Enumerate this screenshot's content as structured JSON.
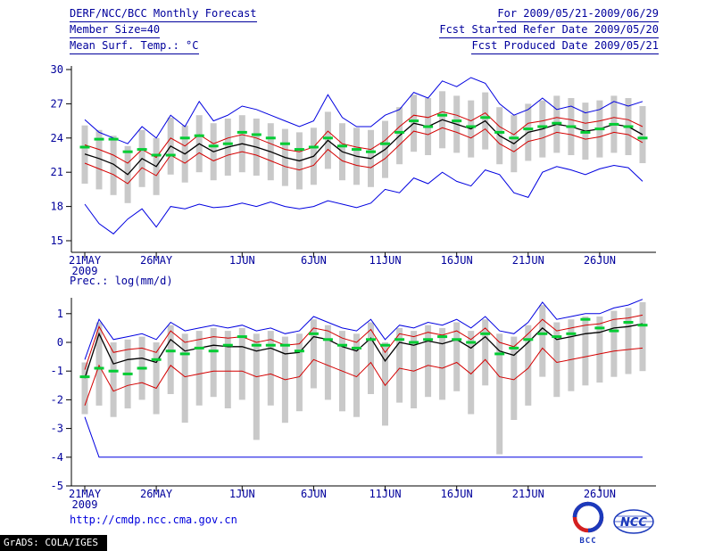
{
  "header": {
    "title": "DERF/NCC/BCC Monthly Forecast",
    "member_size": "Member Size=40",
    "for_range": "For 2009/05/21-2009/06/29",
    "fcst_started": "Fcst Started Refer Date 2009/05/20",
    "fcst_produced": "Fcst Produced Date 2009/05/21"
  },
  "footer": {
    "url": "http://cmdp.ncc.cma.gov.cn",
    "grads_credit": "GrADS: COLA/IGES",
    "bcc_label": "BCC",
    "ncc_label": "NCC"
  },
  "colors": {
    "header_text": "#00009c",
    "tick_text": "#00009c",
    "axis": "#000000",
    "envelope_blue": "#0000e0",
    "quartile_red": "#d40000",
    "mean_black": "#000000",
    "obs_green": "#00cc33",
    "ensemble_bar": "#c9c9c9",
    "url_blue": "#0000dd",
    "logo_blue": "#1c39bb",
    "logo_red": "#d42020"
  },
  "chart_data": [
    {
      "id": "temp",
      "type": "line",
      "title": "Mean Surf. Temp.: °C",
      "n_days": 40,
      "start_date": "21MAY2009",
      "x_ticks": [
        {
          "day": 0,
          "label": "21MAY"
        },
        {
          "day": 5,
          "label": "26MAY"
        },
        {
          "day": 11,
          "label": "1JUN"
        },
        {
          "day": 16,
          "label": "6JUN"
        },
        {
          "day": 21,
          "label": "11JUN"
        },
        {
          "day": 26,
          "label": "16JUN"
        },
        {
          "day": 31,
          "label": "21JUN"
        },
        {
          "day": 36,
          "label": "26JUN"
        }
      ],
      "x_year_label": "2009",
      "ylim": [
        15,
        30
      ],
      "yticks": [
        15,
        18,
        21,
        24,
        27,
        30
      ],
      "grid": false,
      "legend": "none",
      "series": [
        {
          "name": "ensemble-max",
          "color": "#0000e0",
          "width": 1,
          "values": [
            25.6,
            24.5,
            24.0,
            23.5,
            25.0,
            24.0,
            26.0,
            25.0,
            27.2,
            25.5,
            26.0,
            26.8,
            26.5,
            26.0,
            25.5,
            25.0,
            25.5,
            27.8,
            25.8,
            25.0,
            25.0,
            26.0,
            26.5,
            28.0,
            27.5,
            29.0,
            28.5,
            29.3,
            28.8,
            27.0,
            26.0,
            26.5,
            27.5,
            26.5,
            26.8,
            26.2,
            26.5,
            27.2,
            26.8,
            27.2
          ]
        },
        {
          "name": "ensemble-min",
          "color": "#0000e0",
          "width": 1,
          "values": [
            18.2,
            16.5,
            15.6,
            16.9,
            17.8,
            16.2,
            18.0,
            17.8,
            18.2,
            17.9,
            18.0,
            18.3,
            18.0,
            18.4,
            18.0,
            17.8,
            18.0,
            18.5,
            18.2,
            17.9,
            18.3,
            19.5,
            19.2,
            20.5,
            20.0,
            21.0,
            20.2,
            19.8,
            21.2,
            20.8,
            19.2,
            18.8,
            21.0,
            21.5,
            21.2,
            20.8,
            21.3,
            21.6,
            21.4,
            20.2
          ]
        },
        {
          "name": "upper-quartile",
          "color": "#d40000",
          "width": 1,
          "values": [
            23.4,
            23.0,
            22.5,
            21.8,
            23.0,
            22.3,
            24.0,
            23.3,
            24.3,
            23.5,
            24.0,
            24.3,
            24.0,
            23.5,
            23.0,
            22.8,
            23.2,
            24.6,
            23.5,
            23.2,
            23.0,
            23.8,
            25.0,
            26.0,
            25.8,
            26.3,
            26.0,
            25.5,
            26.2,
            25.0,
            24.3,
            25.3,
            25.5,
            25.8,
            25.6,
            25.3,
            25.5,
            25.8,
            25.6,
            25.0
          ]
        },
        {
          "name": "lower-quartile",
          "color": "#d40000",
          "width": 1,
          "values": [
            21.8,
            21.3,
            20.8,
            20.0,
            21.4,
            20.7,
            22.5,
            21.8,
            22.7,
            22.0,
            22.5,
            22.8,
            22.5,
            22.0,
            21.5,
            21.2,
            21.6,
            23.0,
            22.0,
            21.6,
            21.4,
            22.2,
            23.4,
            24.6,
            24.3,
            24.9,
            24.5,
            24.0,
            24.8,
            23.5,
            22.8,
            23.7,
            24.0,
            24.5,
            24.3,
            23.9,
            24.1,
            24.5,
            24.3,
            23.6
          ]
        },
        {
          "name": "ensemble-mean",
          "color": "#000000",
          "width": 1.3,
          "values": [
            22.6,
            22.2,
            21.7,
            20.8,
            22.2,
            21.5,
            23.3,
            22.6,
            23.5,
            22.8,
            23.2,
            23.5,
            23.2,
            22.8,
            22.3,
            22.0,
            22.4,
            23.8,
            22.8,
            22.4,
            22.2,
            23.0,
            24.2,
            25.3,
            25.0,
            25.6,
            25.2,
            24.8,
            25.5,
            24.2,
            23.5,
            24.5,
            24.8,
            25.2,
            25.0,
            24.6,
            24.8,
            25.2,
            25.0,
            24.3
          ]
        },
        {
          "name": "climate-obs",
          "color": "#00cc33",
          "style": "dash-markers",
          "values": [
            23.2,
            23.9,
            23.9,
            22.8,
            23.0,
            22.5,
            22.5,
            24.0,
            24.2,
            23.3,
            23.5,
            24.5,
            24.3,
            24.0,
            23.5,
            23.0,
            23.2,
            24.0,
            23.3,
            23.0,
            22.8,
            23.5,
            24.5,
            25.5,
            25.0,
            26.0,
            25.5,
            25.0,
            25.8,
            24.5,
            24.0,
            24.8,
            25.0,
            25.3,
            25.0,
            24.5,
            24.8,
            25.2,
            25.0,
            24.0
          ]
        }
      ],
      "bars": {
        "lo": [
          20.0,
          19.5,
          19.0,
          18.3,
          19.7,
          19.0,
          20.8,
          20.1,
          21.0,
          20.3,
          20.7,
          21.0,
          20.7,
          20.3,
          19.8,
          19.5,
          19.9,
          21.3,
          20.3,
          19.9,
          19.7,
          20.5,
          21.7,
          22.8,
          22.5,
          23.1,
          22.7,
          22.3,
          23.0,
          21.7,
          21.0,
          22.0,
          22.3,
          22.7,
          22.5,
          22.1,
          22.3,
          22.7,
          22.5,
          21.8
        ],
        "hi": [
          25.1,
          24.7,
          24.2,
          23.3,
          24.7,
          24.0,
          25.8,
          25.1,
          26.0,
          25.3,
          25.7,
          26.0,
          25.7,
          25.3,
          24.8,
          24.5,
          24.9,
          26.3,
          25.3,
          24.9,
          24.7,
          25.5,
          26.7,
          27.8,
          27.5,
          28.1,
          27.7,
          27.3,
          28.0,
          26.7,
          26.0,
          27.0,
          27.3,
          27.7,
          27.5,
          27.1,
          27.3,
          27.7,
          27.5,
          26.8
        ]
      }
    },
    {
      "id": "prec",
      "type": "line",
      "title": "Prec.: log(mm/d)",
      "n_days": 40,
      "start_date": "21MAY2009",
      "x_ticks": [
        {
          "day": 0,
          "label": "21MAY"
        },
        {
          "day": 5,
          "label": "26MAY"
        },
        {
          "day": 11,
          "label": "1JUN"
        },
        {
          "day": 16,
          "label": "6JUN"
        },
        {
          "day": 21,
          "label": "11JUN"
        },
        {
          "day": 26,
          "label": "16JUN"
        },
        {
          "day": 31,
          "label": "21JUN"
        },
        {
          "day": 36,
          "label": "26JUN"
        }
      ],
      "x_year_label": "2009",
      "ylim": [
        -5,
        1.5
      ],
      "yticks": [
        -5,
        -4,
        -3,
        -2,
        -1,
        0,
        1
      ],
      "grid": false,
      "legend": "none",
      "series": [
        {
          "name": "ensemble-max",
          "color": "#0000e0",
          "width": 1,
          "values": [
            -0.6,
            0.8,
            0.1,
            0.2,
            0.3,
            0.1,
            0.7,
            0.4,
            0.5,
            0.6,
            0.5,
            0.6,
            0.4,
            0.5,
            0.3,
            0.4,
            0.9,
            0.7,
            0.5,
            0.4,
            0.8,
            0.1,
            0.6,
            0.5,
            0.7,
            0.6,
            0.8,
            0.5,
            0.9,
            0.4,
            0.3,
            0.7,
            1.4,
            0.8,
            0.9,
            1.0,
            1.0,
            1.2,
            1.3,
            1.5
          ]
        },
        {
          "name": "ensemble-min",
          "color": "#0000e0",
          "width": 1,
          "values": [
            -2.6,
            -4,
            -4,
            -4,
            -4,
            -4,
            -4,
            -4,
            -4,
            -4,
            -4,
            -4,
            -4,
            -4,
            -4,
            -4,
            -4,
            -4,
            -4,
            -4,
            -4,
            -4,
            -4,
            -4,
            -4,
            -4,
            -4,
            -4,
            -4,
            -4,
            -4,
            -4,
            -4,
            -4,
            -4,
            -4,
            -4,
            -4,
            -4,
            -4
          ]
        },
        {
          "name": "upper-quartile",
          "color": "#d40000",
          "width": 1,
          "values": [
            -0.95,
            0.55,
            -0.35,
            -0.25,
            -0.2,
            -0.35,
            0.4,
            0.0,
            0.1,
            0.2,
            0.15,
            0.2,
            0.0,
            0.1,
            -0.1,
            -0.05,
            0.5,
            0.4,
            0.15,
            0.0,
            0.45,
            -0.35,
            0.3,
            0.2,
            0.35,
            0.25,
            0.4,
            0.1,
            0.5,
            0.0,
            -0.15,
            0.3,
            0.8,
            0.4,
            0.5,
            0.6,
            0.65,
            0.8,
            0.85,
            0.95
          ]
        },
        {
          "name": "lower-quartile",
          "color": "#d40000",
          "width": 1,
          "values": [
            -2.2,
            -0.8,
            -1.7,
            -1.5,
            -1.4,
            -1.6,
            -0.8,
            -1.2,
            -1.1,
            -1.0,
            -1.0,
            -1.0,
            -1.2,
            -1.1,
            -1.3,
            -1.2,
            -0.6,
            -0.8,
            -1.0,
            -1.2,
            -0.7,
            -1.5,
            -0.9,
            -1.0,
            -0.8,
            -0.9,
            -0.7,
            -1.1,
            -0.6,
            -1.2,
            -1.3,
            -0.9,
            -0.2,
            -0.7,
            -0.6,
            -0.5,
            -0.4,
            -0.3,
            -0.25,
            -0.2
          ]
        },
        {
          "name": "ensemble-mean",
          "color": "#000000",
          "width": 1.3,
          "values": [
            -1.25,
            0.3,
            -0.75,
            -0.6,
            -0.55,
            -0.7,
            0.1,
            -0.3,
            -0.2,
            -0.1,
            -0.15,
            -0.15,
            -0.3,
            -0.2,
            -0.4,
            -0.35,
            0.2,
            0.1,
            -0.15,
            -0.3,
            0.15,
            -0.65,
            0.0,
            -0.1,
            0.05,
            -0.05,
            0.1,
            -0.2,
            0.2,
            -0.3,
            -0.45,
            0.0,
            0.5,
            0.1,
            0.2,
            0.3,
            0.35,
            0.5,
            0.55,
            0.65
          ]
        },
        {
          "name": "climate-obs",
          "color": "#00cc33",
          "style": "dash-markers",
          "values": [
            -1.2,
            -0.9,
            -1.0,
            -1.1,
            -0.9,
            -0.6,
            -0.3,
            -0.4,
            -0.2,
            -0.3,
            -0.1,
            0.2,
            -0.1,
            -0.1,
            -0.1,
            -0.3,
            0.3,
            0.1,
            -0.1,
            -0.2,
            0.1,
            -0.1,
            0.1,
            0.0,
            0.1,
            0.2,
            0.1,
            0.0,
            0.3,
            -0.4,
            -0.2,
            0.1,
            0.3,
            0.2,
            0.3,
            0.8,
            0.5,
            0.4,
            0.7,
            0.6
          ]
        }
      ],
      "bars": {
        "lo": [
          -2.5,
          -2.2,
          -2.6,
          -2.3,
          -2.0,
          -2.5,
          -1.8,
          -2.8,
          -2.2,
          -1.9,
          -2.3,
          -2.0,
          -3.4,
          -2.2,
          -2.8,
          -2.4,
          -1.6,
          -2.0,
          -2.4,
          -2.6,
          -1.8,
          -2.9,
          -2.1,
          -2.3,
          -1.9,
          -2.0,
          -1.7,
          -2.5,
          -1.5,
          -3.9,
          -2.7,
          -2.2,
          -1.2,
          -1.9,
          -1.7,
          -1.5,
          -1.4,
          -1.2,
          -1.1,
          -1.0
        ],
        "hi": [
          -0.7,
          0.7,
          0.0,
          0.1,
          0.2,
          0.0,
          0.6,
          0.3,
          0.4,
          0.5,
          0.4,
          0.5,
          0.3,
          0.4,
          0.2,
          0.3,
          0.8,
          0.6,
          0.4,
          0.3,
          0.7,
          0.0,
          0.5,
          0.4,
          0.6,
          0.5,
          0.7,
          0.4,
          0.8,
          0.3,
          0.2,
          0.6,
          1.3,
          0.7,
          0.8,
          0.9,
          0.9,
          1.1,
          1.2,
          1.4
        ]
      }
    }
  ]
}
